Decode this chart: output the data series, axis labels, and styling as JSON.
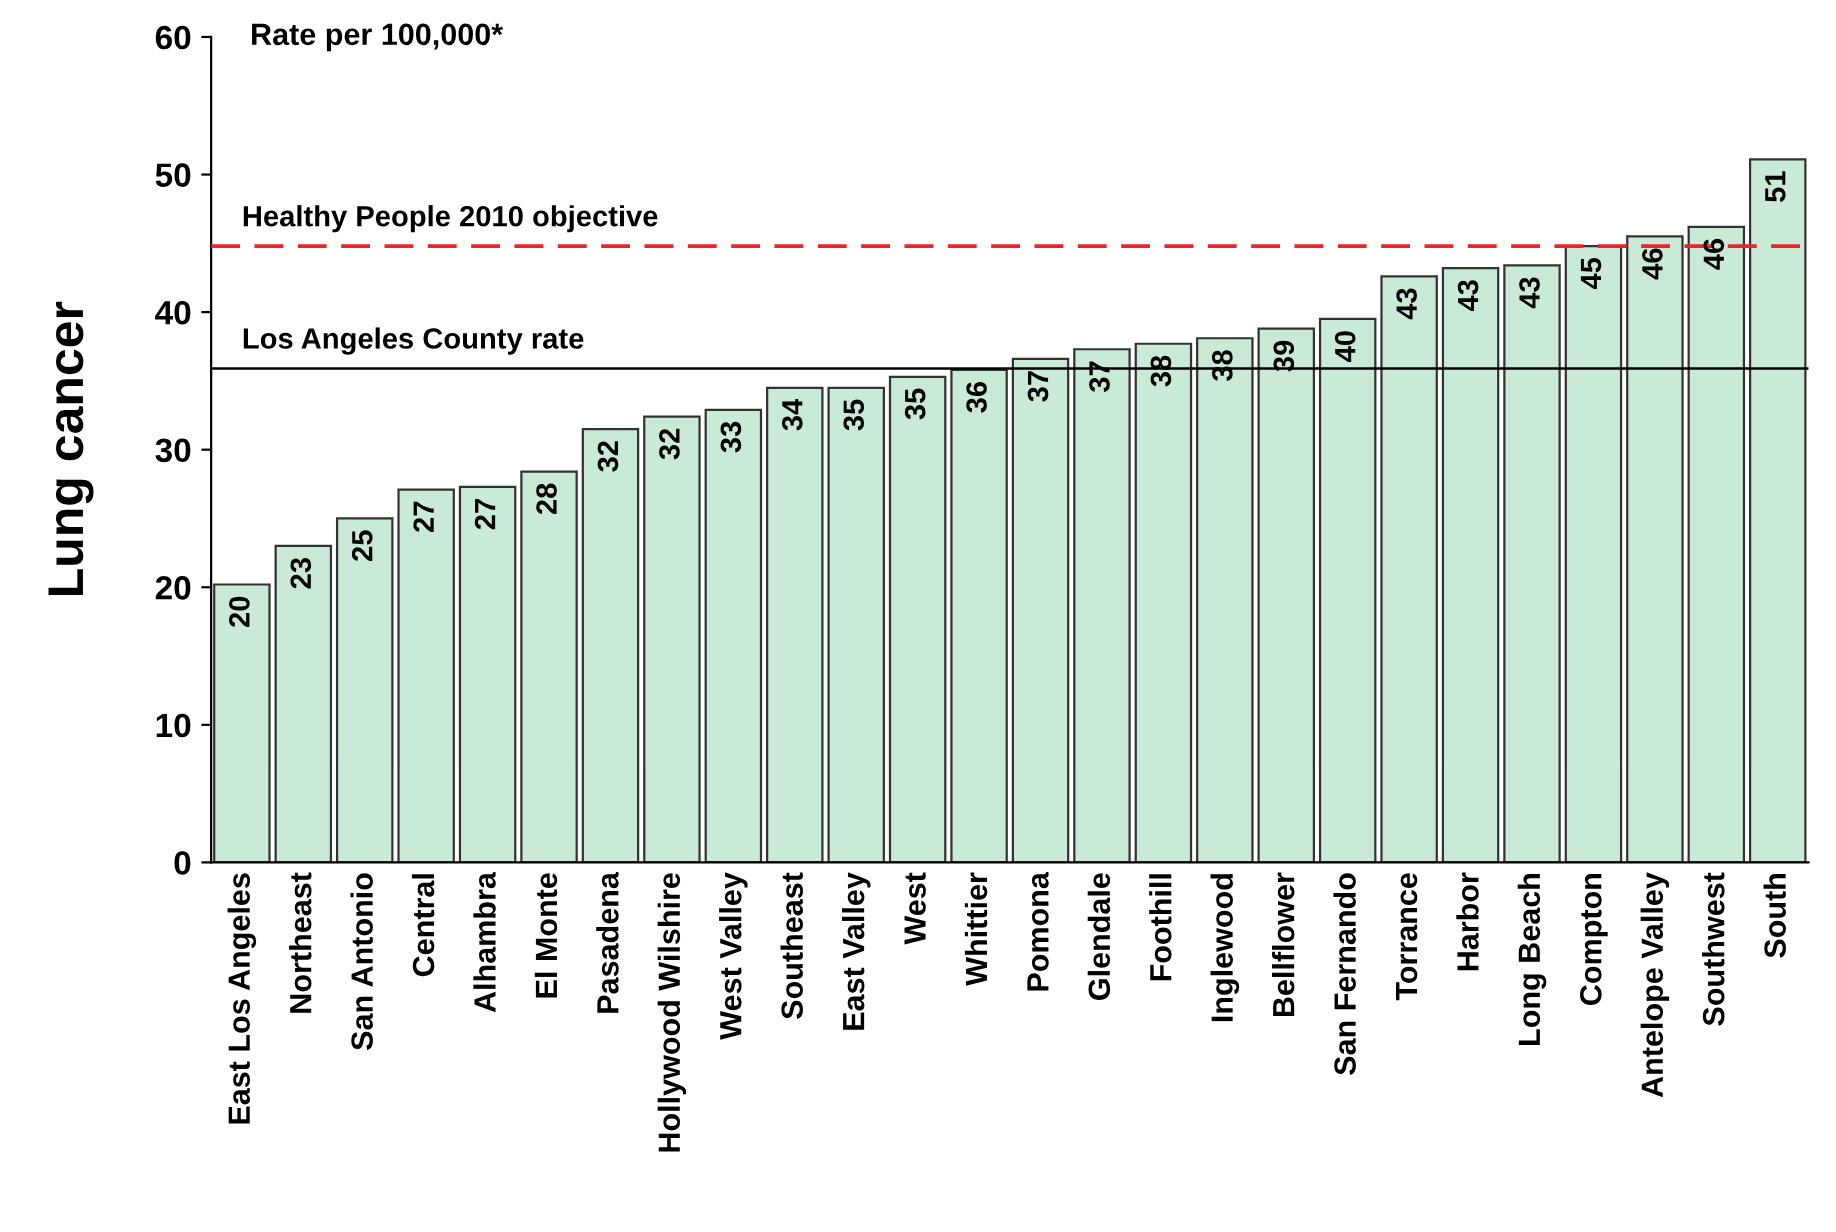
{
  "chart_data": {
    "type": "bar",
    "ylabel": "Lung cancer",
    "annotations": [
      "Rate per 100,000*"
    ],
    "categories": [
      "East Los Angeles",
      "Northeast",
      "San Antonio",
      "Central",
      "Alhambra",
      "El Monte",
      "Pasadena",
      "Hollywood Wilshire",
      "West Valley",
      "Southeast",
      "East Valley",
      "West",
      "Whittier",
      "Pomona",
      "Glendale",
      "Foothill",
      "Inglewood",
      "Bellflower",
      "San Fernando",
      "Torrance",
      "Harbor",
      "Long Beach",
      "Compton",
      "Antelope Valley",
      "Southwest",
      "South"
    ],
    "values": [
      20.2,
      23,
      25,
      27.1,
      27.3,
      28.4,
      31.5,
      32.4,
      32.9,
      34.5,
      34.5,
      35.3,
      35.8,
      36.6,
      37.3,
      37.7,
      38.1,
      38.8,
      39.5,
      42.6,
      43.2,
      43.4,
      44.8,
      45.5,
      46.2,
      51.1
    ],
    "value_labels": [
      "20",
      "23",
      "25",
      "27",
      "27",
      "28",
      "32",
      "32",
      "33",
      "34",
      "35",
      "35",
      "36",
      "37",
      "37",
      "38",
      "38",
      "39",
      "40",
      "43",
      "43",
      "43",
      "45",
      "46",
      "46",
      "51"
    ],
    "color": "#c9ead6",
    "ylim": [
      0,
      60
    ],
    "yticks": [
      0,
      10,
      20,
      30,
      40,
      50,
      60
    ],
    "grid": false,
    "legend": false,
    "ref_lines": [
      {
        "axis": "y",
        "value": 44.8,
        "label": "Healthy People 2010 objective",
        "color": "#e8262a",
        "line_style": "dashed"
      },
      {
        "axis": "y",
        "value": 35.9,
        "label": "Los Angeles County rate",
        "color": "#000000",
        "line_style": "solid"
      }
    ]
  }
}
